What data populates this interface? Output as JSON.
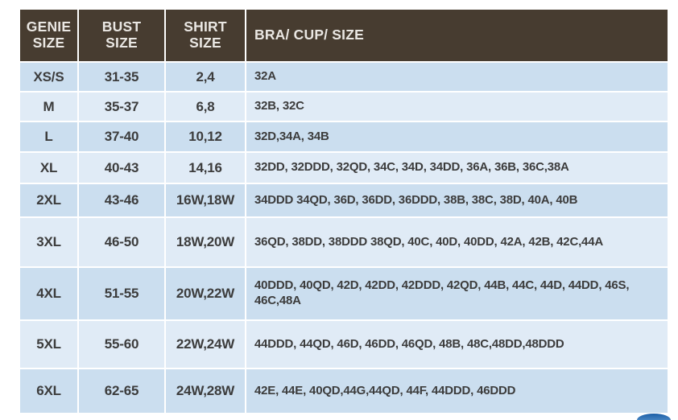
{
  "colors": {
    "header_bg": "#473c30",
    "header_text": "#eae7e3",
    "row_stripe_dark": "#cbdeef",
    "row_stripe_light": "#e0ebf6",
    "body_text": "#3c3c3c",
    "ellipse_blue": "#2e73b8"
  },
  "chart_data": {
    "type": "table",
    "header": [
      {
        "line1": "GENIE",
        "line2": "SIZE"
      },
      {
        "line1": "BUST",
        "line2": "SIZE"
      },
      {
        "line1": "SHIRT",
        "line2": "SIZE"
      },
      {
        "line1": "BRA/ CUP/ SIZE",
        "line2": ""
      }
    ],
    "columns": [
      "GENIE SIZE",
      "BUST SIZE",
      "SHIRT SIZE",
      "BRA/ CUP/ SIZE"
    ],
    "rows": [
      {
        "genie": "XS/S",
        "bust": "31-35",
        "shirt": "2,4",
        "bra": "32A"
      },
      {
        "genie": "M",
        "bust": "35-37",
        "shirt": "6,8",
        "bra": "32B, 32C"
      },
      {
        "genie": "L",
        "bust": "37-40",
        "shirt": "10,12",
        "bra": "32D,34A, 34B"
      },
      {
        "genie": "XL",
        "bust": "40-43",
        "shirt": "14,16",
        "bra": "32DD, 32DDD, 32QD, 34C, 34D, 34DD, 36A, 36B, 36C,38A"
      },
      {
        "genie": "2XL",
        "bust": "43-46",
        "shirt": "16W,18W",
        "bra": "34DDD 34QD, 36D, 36DD, 36DDD, 38B, 38C, 38D, 40A, 40B"
      },
      {
        "genie": "3XL",
        "bust": "46-50",
        "shirt": "18W,20W",
        "bra": "36QD, 38DD, 38DDD 38QD, 40C, 40D, 40DD, 42A, 42B, 42C,44A"
      },
      {
        "genie": "4XL",
        "bust": "51-55",
        "shirt": "20W,22W",
        "bra": "40DDD, 40QD, 42D, 42DD, 42DDD, 42QD, 44B, 44C, 44D, 44DD, 46S, 46C,48A"
      },
      {
        "genie": "5XL",
        "bust": "55-60",
        "shirt": "22W,24W",
        "bra": "44DDD, 44QD, 46D, 46DD, 46QD, 48B, 48C,48DD,48DDD"
      },
      {
        "genie": "6XL",
        "bust": "62-65",
        "shirt": "24W,28W",
        "bra": "42E, 44E, 40QD,44G,44QD, 44F, 44DDD, 46DDD"
      }
    ]
  }
}
